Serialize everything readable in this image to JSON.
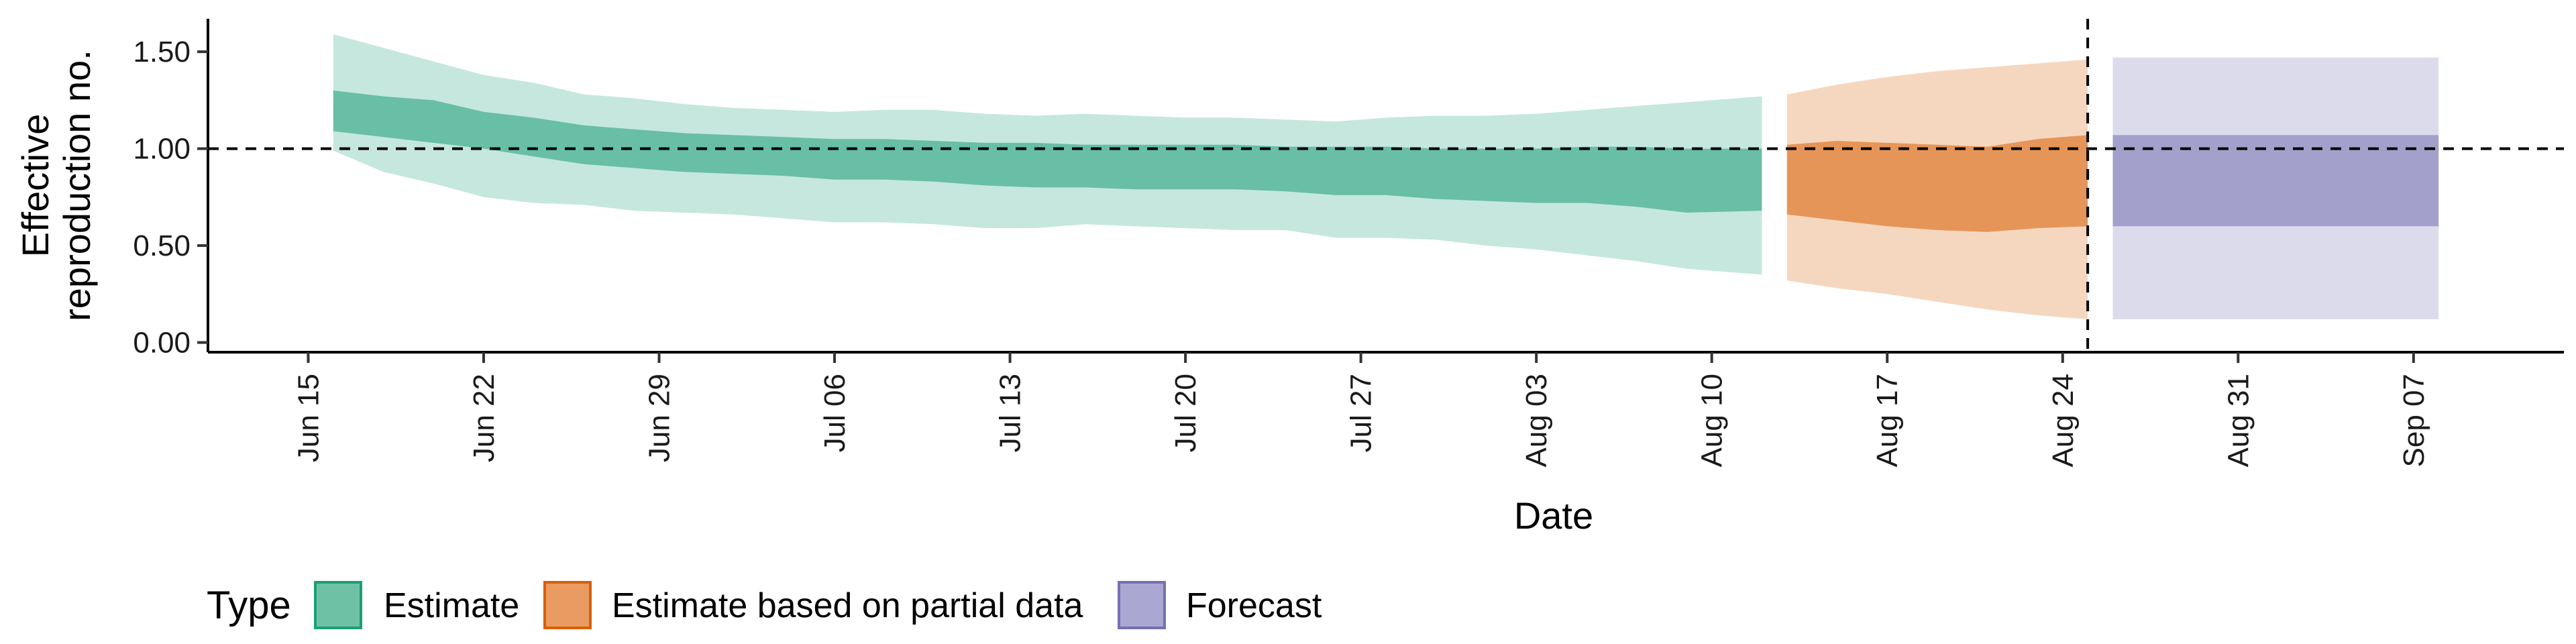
{
  "chart_data": {
    "type": "area",
    "title": "",
    "xlabel": "Date",
    "ylabel_lines": [
      "Effective",
      "reproduction no."
    ],
    "x_range": [
      "2020-06-11",
      "2020-09-13"
    ],
    "x_ticks": [
      {
        "date": "2020-06-15",
        "label": "Jun 15"
      },
      {
        "date": "2020-06-22",
        "label": "Jun 22"
      },
      {
        "date": "2020-06-29",
        "label": "Jun 29"
      },
      {
        "date": "2020-07-06",
        "label": "Jul 06"
      },
      {
        "date": "2020-07-13",
        "label": "Jul 13"
      },
      {
        "date": "2020-07-20",
        "label": "Jul 20"
      },
      {
        "date": "2020-07-27",
        "label": "Jul 27"
      },
      {
        "date": "2020-08-03",
        "label": "Aug 03"
      },
      {
        "date": "2020-08-10",
        "label": "Aug 10"
      },
      {
        "date": "2020-08-17",
        "label": "Aug 17"
      },
      {
        "date": "2020-08-24",
        "label": "Aug 24"
      },
      {
        "date": "2020-08-31",
        "label": "Aug 31"
      },
      {
        "date": "2020-09-07",
        "label": "Sep 07"
      }
    ],
    "y_ticks": [
      {
        "value": 0,
        "label": "0.00"
      },
      {
        "value": 0.5,
        "label": "0.50"
      },
      {
        "value": 1.0,
        "label": "1.00"
      },
      {
        "value": 1.5,
        "label": "1.50"
      }
    ],
    "ylim": [
      -0.05,
      1.67
    ],
    "reference_line_y": 1.0,
    "vertical_line_x": "2020-08-25",
    "grid": false,
    "legend": {
      "title": "Type",
      "position": "bottom-left",
      "entries": [
        {
          "label": "Estimate",
          "fill": "#6FC1A5",
          "border": "#1B9E77"
        },
        {
          "label": "Estimate based on partial data",
          "fill": "#E99B62",
          "border": "#D95F02"
        },
        {
          "label": "Forecast",
          "fill": "#AAA7D2",
          "border": "#7570B3"
        }
      ]
    },
    "series": [
      {
        "name": "Estimate",
        "color": "#1B9E77",
        "points": [
          {
            "date": "2020-06-16",
            "lower_90": 0.99,
            "lower_50": 1.09,
            "upper_50": 1.3,
            "upper_90": 1.59
          },
          {
            "date": "2020-06-18",
            "lower_90": 0.88,
            "lower_50": 1.06,
            "upper_50": 1.27,
            "upper_90": 1.52
          },
          {
            "date": "2020-06-20",
            "lower_90": 0.82,
            "lower_50": 1.03,
            "upper_50": 1.25,
            "upper_90": 1.45
          },
          {
            "date": "2020-06-22",
            "lower_90": 0.75,
            "lower_50": 1.0,
            "upper_50": 1.19,
            "upper_90": 1.38
          },
          {
            "date": "2020-06-24",
            "lower_90": 0.72,
            "lower_50": 0.96,
            "upper_50": 1.16,
            "upper_90": 1.34
          },
          {
            "date": "2020-06-26",
            "lower_90": 0.71,
            "lower_50": 0.92,
            "upper_50": 1.12,
            "upper_90": 1.28
          },
          {
            "date": "2020-06-28",
            "lower_90": 0.68,
            "lower_50": 0.9,
            "upper_50": 1.1,
            "upper_90": 1.26
          },
          {
            "date": "2020-06-30",
            "lower_90": 0.67,
            "lower_50": 0.88,
            "upper_50": 1.08,
            "upper_90": 1.23
          },
          {
            "date": "2020-07-02",
            "lower_90": 0.66,
            "lower_50": 0.87,
            "upper_50": 1.07,
            "upper_90": 1.21
          },
          {
            "date": "2020-07-04",
            "lower_90": 0.64,
            "lower_50": 0.86,
            "upper_50": 1.06,
            "upper_90": 1.2
          },
          {
            "date": "2020-07-06",
            "lower_90": 0.62,
            "lower_50": 0.84,
            "upper_50": 1.05,
            "upper_90": 1.19
          },
          {
            "date": "2020-07-08",
            "lower_90": 0.62,
            "lower_50": 0.84,
            "upper_50": 1.05,
            "upper_90": 1.2
          },
          {
            "date": "2020-07-10",
            "lower_90": 0.61,
            "lower_50": 0.83,
            "upper_50": 1.04,
            "upper_90": 1.2
          },
          {
            "date": "2020-07-12",
            "lower_90": 0.59,
            "lower_50": 0.81,
            "upper_50": 1.03,
            "upper_90": 1.18
          },
          {
            "date": "2020-07-14",
            "lower_90": 0.59,
            "lower_50": 0.8,
            "upper_50": 1.03,
            "upper_90": 1.17
          },
          {
            "date": "2020-07-16",
            "lower_90": 0.61,
            "lower_50": 0.8,
            "upper_50": 1.02,
            "upper_90": 1.18
          },
          {
            "date": "2020-07-18",
            "lower_90": 0.6,
            "lower_50": 0.79,
            "upper_50": 1.02,
            "upper_90": 1.17
          },
          {
            "date": "2020-07-20",
            "lower_90": 0.59,
            "lower_50": 0.79,
            "upper_50": 1.02,
            "upper_90": 1.16
          },
          {
            "date": "2020-07-22",
            "lower_90": 0.58,
            "lower_50": 0.79,
            "upper_50": 1.02,
            "upper_90": 1.16
          },
          {
            "date": "2020-07-24",
            "lower_90": 0.58,
            "lower_50": 0.78,
            "upper_50": 1.01,
            "upper_90": 1.15
          },
          {
            "date": "2020-07-26",
            "lower_90": 0.54,
            "lower_50": 0.76,
            "upper_50": 1.01,
            "upper_90": 1.14
          },
          {
            "date": "2020-07-28",
            "lower_90": 0.54,
            "lower_50": 0.76,
            "upper_50": 1.01,
            "upper_90": 1.16
          },
          {
            "date": "2020-07-30",
            "lower_90": 0.53,
            "lower_50": 0.74,
            "upper_50": 1.0,
            "upper_90": 1.17
          },
          {
            "date": "2020-08-01",
            "lower_90": 0.5,
            "lower_50": 0.73,
            "upper_50": 1.0,
            "upper_90": 1.17
          },
          {
            "date": "2020-08-03",
            "lower_90": 0.48,
            "lower_50": 0.72,
            "upper_50": 1.0,
            "upper_90": 1.18
          },
          {
            "date": "2020-08-05",
            "lower_90": 0.45,
            "lower_50": 0.72,
            "upper_50": 1.01,
            "upper_90": 1.2
          },
          {
            "date": "2020-08-07",
            "lower_90": 0.42,
            "lower_50": 0.7,
            "upper_50": 1.01,
            "upper_90": 1.22
          },
          {
            "date": "2020-08-09",
            "lower_90": 0.38,
            "lower_50": 0.67,
            "upper_50": 1.0,
            "upper_90": 1.24
          },
          {
            "date": "2020-08-12",
            "lower_90": 0.35,
            "lower_50": 0.68,
            "upper_50": 1.0,
            "upper_90": 1.27
          }
        ]
      },
      {
        "name": "Estimate based on partial data",
        "color": "#D95F02",
        "points": [
          {
            "date": "2020-08-13",
            "lower_90": 0.32,
            "lower_50": 0.66,
            "upper_50": 1.02,
            "upper_90": 1.28
          },
          {
            "date": "2020-08-15",
            "lower_90": 0.28,
            "lower_50": 0.63,
            "upper_50": 1.04,
            "upper_90": 1.33
          },
          {
            "date": "2020-08-17",
            "lower_90": 0.25,
            "lower_50": 0.6,
            "upper_50": 1.03,
            "upper_90": 1.37
          },
          {
            "date": "2020-08-19",
            "lower_90": 0.21,
            "lower_50": 0.58,
            "upper_50": 1.02,
            "upper_90": 1.4
          },
          {
            "date": "2020-08-21",
            "lower_90": 0.17,
            "lower_50": 0.57,
            "upper_50": 1.01,
            "upper_90": 1.42
          },
          {
            "date": "2020-08-23",
            "lower_90": 0.14,
            "lower_50": 0.59,
            "upper_50": 1.05,
            "upper_90": 1.44
          },
          {
            "date": "2020-08-25",
            "lower_90": 0.12,
            "lower_50": 0.6,
            "upper_50": 1.07,
            "upper_90": 1.46
          }
        ]
      },
      {
        "name": "Forecast",
        "color": "#7570B3",
        "points": [
          {
            "date": "2020-08-26",
            "lower_90": 0.12,
            "lower_50": 0.6,
            "upper_50": 1.07,
            "upper_90": 1.47
          },
          {
            "date": "2020-09-08",
            "lower_90": 0.12,
            "lower_50": 0.6,
            "upper_50": 1.07,
            "upper_90": 1.47
          }
        ]
      }
    ]
  }
}
